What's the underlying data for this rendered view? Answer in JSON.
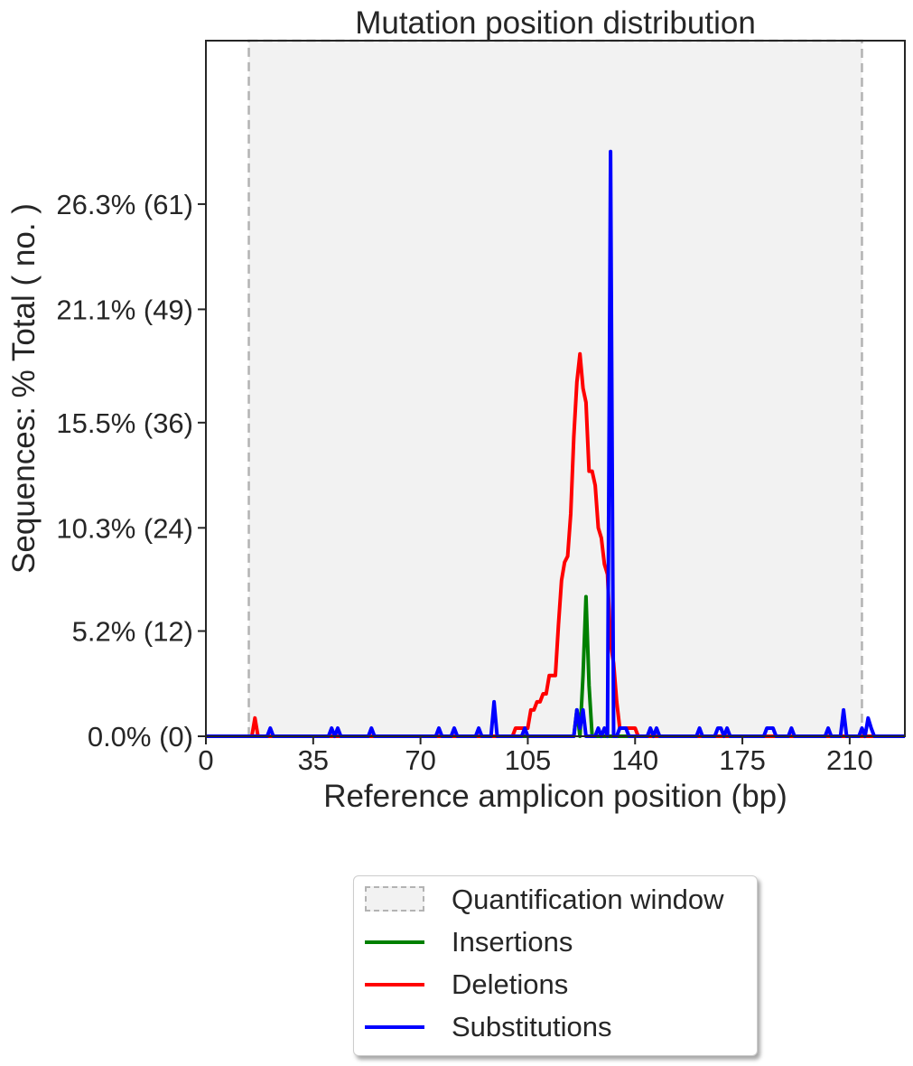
{
  "chart_data": {
    "type": "line",
    "title": "Mutation position distribution",
    "xlabel": "Reference amplicon position (bp)",
    "ylabel": "Sequences: % Total ( no. )",
    "xlim": [
      0,
      228
    ],
    "ylim": [
      0,
      74
    ],
    "x_ticks": [
      0,
      35,
      70,
      105,
      140,
      175,
      210
    ],
    "x_tick_labels": [
      "0",
      "35",
      "70",
      "105",
      "140",
      "175",
      "210"
    ],
    "y_ticks": [
      0,
      5.2,
      10.3,
      15.5,
      21.1,
      26.3
    ],
    "y_tick_labels": [
      "0.0% (0)",
      "5.2% (12)",
      "10.3% (24)",
      "15.5% (36)",
      "21.1% (49)",
      "26.3% (61)"
    ],
    "y_display_max": 31.8,
    "quantification_window": [
      14,
      214
    ],
    "legend": "below",
    "series": [
      {
        "name": "Insertions",
        "color": "#008000",
        "points": [
          [
            0,
            0
          ],
          [
            120,
            0
          ],
          [
            121,
            1.3
          ],
          [
            122,
            0
          ],
          [
            123,
            3.0
          ],
          [
            124,
            6.9
          ],
          [
            125,
            2.5
          ],
          [
            126,
            0
          ],
          [
            228,
            0
          ]
        ]
      },
      {
        "name": "Deletions",
        "color": "#ff0000",
        "points": [
          [
            0,
            0
          ],
          [
            15,
            0
          ],
          [
            16,
            0.9
          ],
          [
            17,
            0
          ],
          [
            100,
            0
          ],
          [
            101,
            0.4
          ],
          [
            105,
            0.4
          ],
          [
            106,
            1.3
          ],
          [
            107,
            1.3
          ],
          [
            108,
            1.7
          ],
          [
            109,
            1.7
          ],
          [
            110,
            2.1
          ],
          [
            111,
            2.1
          ],
          [
            112,
            3.0
          ],
          [
            113,
            3.0
          ],
          [
            114,
            3.0
          ],
          [
            115,
            5.5
          ],
          [
            116,
            7.7
          ],
          [
            117,
            8.6
          ],
          [
            118,
            8.9
          ],
          [
            119,
            11.0
          ],
          [
            120,
            14.8
          ],
          [
            121,
            17.5
          ],
          [
            122,
            18.9
          ],
          [
            123,
            17.2
          ],
          [
            124,
            16.5
          ],
          [
            125,
            13.1
          ],
          [
            126,
            13.1
          ],
          [
            127,
            12.4
          ],
          [
            128,
            10.3
          ],
          [
            129,
            9.8
          ],
          [
            130,
            8.5
          ],
          [
            131,
            8.0
          ],
          [
            132,
            4.6
          ],
          [
            133,
            3.6
          ],
          [
            134,
            1.7
          ],
          [
            135,
            0.4
          ],
          [
            140,
            0.4
          ],
          [
            141,
            0
          ],
          [
            228,
            0
          ]
        ]
      },
      {
        "name": "Substitutions",
        "color": "#0000ff",
        "points": [
          [
            0,
            0
          ],
          [
            20,
            0
          ],
          [
            21,
            0.4
          ],
          [
            22,
            0
          ],
          [
            40,
            0
          ],
          [
            41,
            0.4
          ],
          [
            42,
            0
          ],
          [
            43,
            0.4
          ],
          [
            44,
            0
          ],
          [
            53,
            0
          ],
          [
            54,
            0.4
          ],
          [
            55,
            0
          ],
          [
            75,
            0
          ],
          [
            76,
            0.4
          ],
          [
            77,
            0
          ],
          [
            80,
            0
          ],
          [
            81,
            0.4
          ],
          [
            82,
            0
          ],
          [
            88,
            0
          ],
          [
            89,
            0.4
          ],
          [
            90,
            0
          ],
          [
            93,
            0
          ],
          [
            94,
            1.7
          ],
          [
            95,
            0
          ],
          [
            103,
            0
          ],
          [
            104,
            0.4
          ],
          [
            105,
            0
          ],
          [
            120,
            0
          ],
          [
            121,
            1.3
          ],
          [
            122,
            0.4
          ],
          [
            123,
            1.3
          ],
          [
            124,
            0
          ],
          [
            127,
            0
          ],
          [
            128,
            0.4
          ],
          [
            129,
            0
          ],
          [
            130,
            0.4
          ],
          [
            131,
            0
          ],
          [
            132,
            28.9
          ],
          [
            133,
            0
          ],
          [
            134,
            0
          ],
          [
            135,
            0.4
          ],
          [
            137,
            0.4
          ],
          [
            138,
            0
          ],
          [
            144,
            0
          ],
          [
            145,
            0.4
          ],
          [
            146,
            0
          ],
          [
            147,
            0.4
          ],
          [
            148,
            0
          ],
          [
            160,
            0
          ],
          [
            161,
            0.4
          ],
          [
            162,
            0
          ],
          [
            166,
            0
          ],
          [
            167,
            0.4
          ],
          [
            168,
            0.4
          ],
          [
            169,
            0
          ],
          [
            170,
            0.4
          ],
          [
            171,
            0
          ],
          [
            182,
            0
          ],
          [
            183,
            0.4
          ],
          [
            185,
            0.4
          ],
          [
            186,
            0
          ],
          [
            190,
            0
          ],
          [
            191,
            0.4
          ],
          [
            192,
            0
          ],
          [
            202,
            0
          ],
          [
            203,
            0.4
          ],
          [
            204,
            0
          ],
          [
            207,
            0
          ],
          [
            208,
            1.3
          ],
          [
            209,
            0
          ],
          [
            213,
            0
          ],
          [
            214,
            0.4
          ],
          [
            215,
            0
          ],
          [
            216,
            0.9
          ],
          [
            217,
            0.4
          ],
          [
            218,
            0
          ],
          [
            228,
            0
          ]
        ]
      }
    ],
    "legend_entries": [
      "Quantification window",
      "Insertions",
      "Deletions",
      "Substitutions"
    ]
  }
}
